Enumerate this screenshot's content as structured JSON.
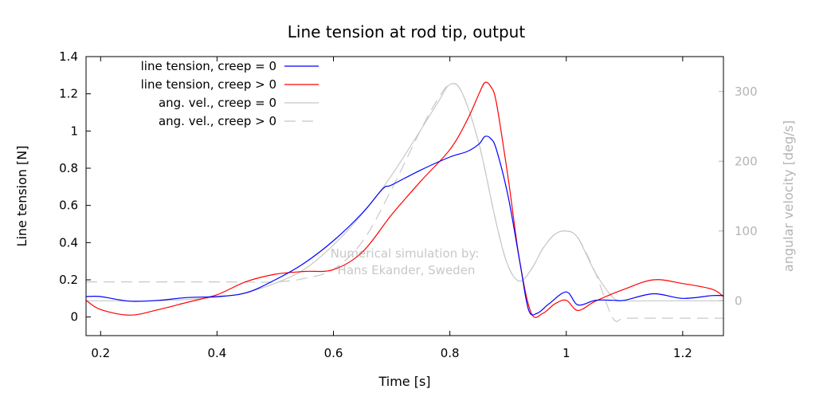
{
  "chart_data": {
    "type": "line",
    "title": "Line tension at rod tip, output",
    "xlabel": "Time [s]",
    "ylabel": "Line tension [N]",
    "y2label": "angular velocity [deg/s]",
    "xlim": [
      0.175,
      1.27
    ],
    "ylim": [
      -0.1,
      1.4
    ],
    "y2lim": [
      -50,
      350
    ],
    "x_ticks": [
      {
        "value": 0.2,
        "label": "0.2"
      },
      {
        "value": 0.4,
        "label": "0.4"
      },
      {
        "value": 0.6,
        "label": "0.6"
      },
      {
        "value": 0.8,
        "label": "0.8"
      },
      {
        "value": 1.0,
        "label": "1"
      },
      {
        "value": 1.2,
        "label": "1.2"
      }
    ],
    "y_ticks": [
      {
        "value": 0,
        "label": "0"
      },
      {
        "value": 0.2,
        "label": "0.2"
      },
      {
        "value": 0.4,
        "label": "0.4"
      },
      {
        "value": 0.6,
        "label": "0.6"
      },
      {
        "value": 0.8,
        "label": "0.8"
      },
      {
        "value": 1.0,
        "label": "1"
      },
      {
        "value": 1.2,
        "label": "1.2"
      },
      {
        "value": 1.4,
        "label": "1.4"
      }
    ],
    "y2_ticks": [
      {
        "value": 0,
        "label": "0"
      },
      {
        "value": 100,
        "label": "100"
      },
      {
        "value": 200,
        "label": "200"
      },
      {
        "value": 300,
        "label": "300"
      }
    ],
    "grid": false,
    "legend_position": "top-left",
    "annotation": [
      "Numerical simulation by:",
      "Hans Ekander, Sweden"
    ],
    "series": [
      {
        "name": "line tension, creep = 0",
        "axis": "left",
        "color": "#0000ff",
        "dash": "solid",
        "x": [
          0.175,
          0.2,
          0.25,
          0.3,
          0.35,
          0.4,
          0.45,
          0.5,
          0.55,
          0.6,
          0.65,
          0.685,
          0.7,
          0.75,
          0.8,
          0.83,
          0.85,
          0.86,
          0.87,
          0.88,
          0.9,
          0.92,
          0.935,
          0.95,
          0.97,
          1.0,
          1.02,
          1.05,
          1.08,
          1.1,
          1.15,
          1.2,
          1.25,
          1.27
        ],
        "y": [
          0.11,
          0.11,
          0.085,
          0.09,
          0.105,
          0.11,
          0.13,
          0.2,
          0.29,
          0.41,
          0.56,
          0.69,
          0.71,
          0.79,
          0.86,
          0.89,
          0.93,
          0.97,
          0.96,
          0.9,
          0.65,
          0.3,
          0.04,
          0.02,
          0.07,
          0.135,
          0.065,
          0.09,
          0.09,
          0.09,
          0.125,
          0.1,
          0.115,
          0.115
        ]
      },
      {
        "name": "line tension, creep > 0",
        "axis": "left",
        "color": "#ff0000",
        "dash": "solid",
        "x": [
          0.175,
          0.2,
          0.25,
          0.3,
          0.35,
          0.4,
          0.45,
          0.5,
          0.55,
          0.6,
          0.65,
          0.7,
          0.75,
          0.8,
          0.83,
          0.85,
          0.86,
          0.87,
          0.88,
          0.9,
          0.92,
          0.94,
          0.96,
          0.98,
          1.0,
          1.02,
          1.05,
          1.1,
          1.15,
          1.2,
          1.25,
          1.27
        ],
        "y": [
          0.09,
          0.04,
          0.01,
          0.04,
          0.08,
          0.12,
          0.19,
          0.23,
          0.245,
          0.255,
          0.35,
          0.55,
          0.73,
          0.9,
          1.06,
          1.2,
          1.26,
          1.24,
          1.15,
          0.75,
          0.3,
          0.02,
          0.02,
          0.07,
          0.09,
          0.035,
          0.085,
          0.15,
          0.2,
          0.18,
          0.15,
          0.11
        ]
      },
      {
        "name": "ang. vel., creep = 0",
        "axis": "right",
        "color": "#c8c8c8",
        "dash": "solid",
        "x": [
          0.175,
          0.2,
          0.3,
          0.4,
          0.45,
          0.5,
          0.55,
          0.6,
          0.65,
          0.7,
          0.75,
          0.78,
          0.8,
          0.82,
          0.85,
          0.88,
          0.9,
          0.92,
          0.94,
          0.96,
          0.98,
          1.0,
          1.02,
          1.05,
          1.08,
          1.1,
          1.15,
          1.2,
          1.27
        ],
        "y": [
          0,
          0,
          0,
          5,
          12,
          25,
          45,
          80,
          125,
          180,
          245,
          285,
          310,
          300,
          225,
          110,
          50,
          28,
          45,
          75,
          95,
          100,
          90,
          40,
          5,
          0,
          0,
          0,
          0
        ]
      },
      {
        "name": "ang. vel., creep > 0",
        "axis": "right",
        "color": "#c8c8c8",
        "dash": "dashed",
        "x": [
          0.175,
          0.2,
          0.3,
          0.4,
          0.5,
          0.55,
          0.6,
          0.65,
          0.7,
          0.75,
          0.78,
          0.8,
          0.82,
          0.85,
          0.88,
          0.9,
          0.92,
          0.94,
          0.96,
          0.98,
          1.0,
          1.02,
          1.05,
          1.08,
          1.1,
          1.15,
          1.2,
          1.27
        ],
        "y": [
          27,
          27,
          27,
          27,
          27,
          32,
          45,
          85,
          160,
          245,
          290,
          310,
          300,
          225,
          110,
          50,
          28,
          45,
          75,
          95,
          100,
          90,
          40,
          -25,
          -25,
          -25,
          -25,
          -25
        ]
      }
    ]
  }
}
